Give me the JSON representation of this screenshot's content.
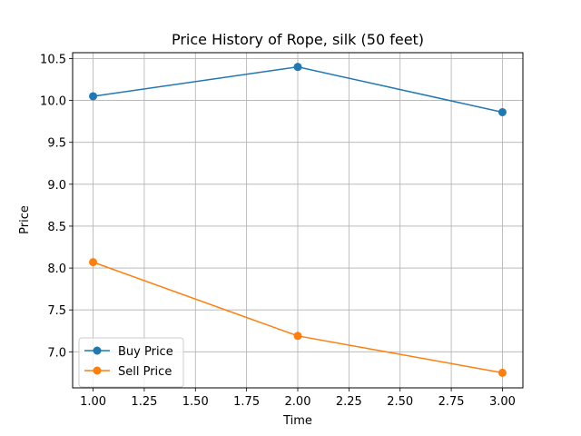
{
  "chart_data": {
    "type": "line",
    "title": "Price History of Rope, silk (50 feet)",
    "xlabel": "Time",
    "ylabel": "Price",
    "xlim": [
      0.9,
      3.1
    ],
    "ylim": [
      6.57,
      10.57
    ],
    "x_ticks": [
      1.0,
      1.25,
      1.5,
      1.75,
      2.0,
      2.25,
      2.5,
      2.75,
      3.0
    ],
    "x_tick_labels": [
      "1.00",
      "1.25",
      "1.50",
      "1.75",
      "2.00",
      "2.25",
      "2.50",
      "2.75",
      "3.00"
    ],
    "y_ticks": [
      7.0,
      7.5,
      8.0,
      8.5,
      9.0,
      9.5,
      10.0,
      10.5
    ],
    "y_tick_labels": [
      "7.0",
      "7.5",
      "8.0",
      "8.5",
      "9.0",
      "9.5",
      "10.0",
      "10.5"
    ],
    "grid": true,
    "legend_position": "lower-left",
    "x": [
      1,
      2,
      3
    ],
    "series": [
      {
        "name": "Buy Price",
        "color": "#1f77b4",
        "values": [
          10.05,
          10.4,
          9.86
        ]
      },
      {
        "name": "Sell Price",
        "color": "#ff7f0e",
        "values": [
          8.07,
          7.19,
          6.75
        ]
      }
    ]
  }
}
